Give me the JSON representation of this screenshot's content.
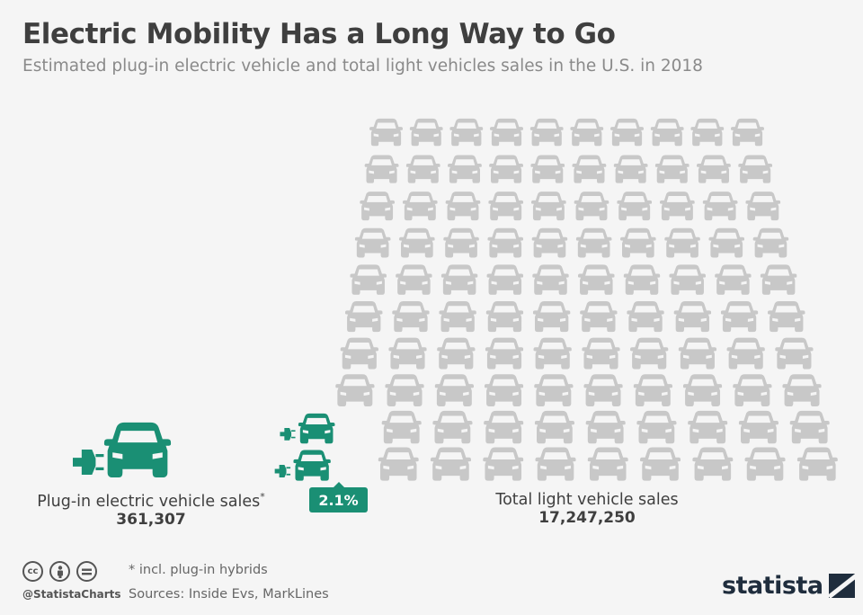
{
  "title": "Electric Mobility Has a Long Way to Go",
  "subtitle": "Estimated plug-in electric vehicle and total light vehicles sales in the U.S. in 2018",
  "chart_data": {
    "type": "pictogram",
    "categories": [
      "Plug-in electric vehicle sales",
      "Total light vehicle sales"
    ],
    "values": [
      361307,
      17247250
    ],
    "share_percent": 2.1,
    "share_label": "2.1%",
    "icon_grid": {
      "rows": 10,
      "columns": 10,
      "total_icons": 100,
      "electric_icons": 2
    }
  },
  "colors": {
    "electric": "#1a8f74",
    "total": "#c8c8c8",
    "text": "#3f3f3f"
  },
  "labels": {
    "ev_label": "Plug-in electric vehicle sales",
    "ev_asterisk": "*",
    "ev_value": "361,307",
    "total_label": "Total light vehicle sales",
    "total_value": "17,247,250"
  },
  "footer": {
    "icons": [
      "cc-icon",
      "attribution-icon",
      "no-derivatives-icon"
    ],
    "cc_text": "cc",
    "handle": "@StatistaCharts",
    "note": "* incl. plug-in hybrids",
    "sources": "Sources: Inside Evs, MarkLines",
    "brand": "statista"
  }
}
